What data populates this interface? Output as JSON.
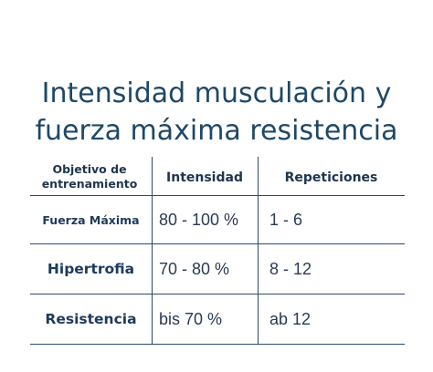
{
  "title": {
    "line1": "Intensidad musculación y",
    "line2": "fuerza máxima resistencia"
  },
  "table": {
    "headers": {
      "objetivo_line1": "Objetivo de",
      "objetivo_line2": "entrenamiento",
      "intensidad": "Intensidad",
      "repeticiones": "Repeticiones"
    },
    "rows": [
      {
        "objetivo": "Fuerza Máxima",
        "intensidad": "80 - 100 %",
        "repeticiones": "1 - 6"
      },
      {
        "objetivo": "Hipertrofia",
        "intensidad": "70 - 80 %",
        "repeticiones": "8 - 12"
      },
      {
        "objetivo": "Resistencia",
        "intensidad": "bis 70 %",
        "repeticiones": "ab 12"
      }
    ]
  }
}
